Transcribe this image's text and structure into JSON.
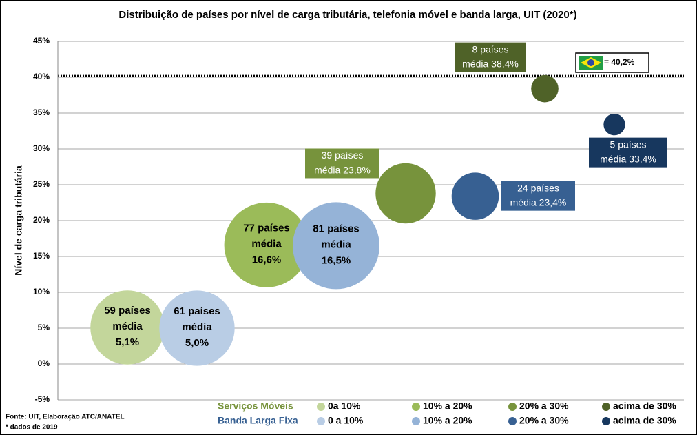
{
  "chart_data": {
    "type": "bubble",
    "title": "Distribuição de países por nível de carga tributária, telefonia móvel e banda larga, UIT (2020*)",
    "y_label": "Nível de carga tributária",
    "ylim": [
      -5,
      45
    ],
    "yticks": [
      {
        "value": -5,
        "label": "-5%"
      },
      {
        "value": 0,
        "label": "0%"
      },
      {
        "value": 5,
        "label": "5%"
      },
      {
        "value": 10,
        "label": "10%"
      },
      {
        "value": 15,
        "label": "15%"
      },
      {
        "value": 20,
        "label": "20%"
      },
      {
        "value": 25,
        "label": "25%"
      },
      {
        "value": 30,
        "label": "30%"
      },
      {
        "value": 35,
        "label": "35%"
      },
      {
        "value": 40,
        "label": "40%"
      },
      {
        "value": 45,
        "label": "45%"
      }
    ],
    "grid": true,
    "mean_label": "média",
    "groups": [
      {
        "name": "Serviços Móveis",
        "color": "#77933c",
        "series": [
          {
            "name": "0a 10%",
            "color": "#c3d69b",
            "size": 59,
            "size_label": "59 países",
            "value": 5.1,
            "value_label": "5,1%"
          },
          {
            "name": "10% a 20%",
            "color": "#9bbb59",
            "size": 77,
            "size_label": "77 países",
            "value": 16.6,
            "value_label": "16,6%"
          },
          {
            "name": "20% a 30%",
            "color": "#77933c",
            "size": 39,
            "size_label": "39 países",
            "value": 23.8,
            "value_label": "23,8%"
          },
          {
            "name": "acima de 30%",
            "color": "#4f6228",
            "size": 8,
            "size_label": "8 países",
            "value": 38.4,
            "value_label": "38,4%"
          }
        ]
      },
      {
        "name": "Banda Larga Fixa",
        "color": "#376092",
        "series": [
          {
            "name": "0 a 10%",
            "color": "#b9cde5",
            "size": 61,
            "size_label": "61 países",
            "value": 5.0,
            "value_label": "5,0%"
          },
          {
            "name": "10% a 20%",
            "color": "#95b3d7",
            "size": 81,
            "size_label": "81 países",
            "value": 16.5,
            "value_label": "16,5%"
          },
          {
            "name": "20% a 30%",
            "color": "#376092",
            "size": 24,
            "size_label": "24 países",
            "value": 23.4,
            "value_label": "23,4%"
          },
          {
            "name": "acima de 30%",
            "color": "#17375e",
            "size": 5,
            "size_label": "5 países",
            "value": 33.4,
            "value_label": "33,4%"
          }
        ]
      }
    ],
    "reference": {
      "value": 40.2,
      "label": "= 40,2%"
    },
    "notes": [
      "Fonte: UIT, Elaboração ATC/ANATEL",
      "* dados de 2019"
    ]
  }
}
